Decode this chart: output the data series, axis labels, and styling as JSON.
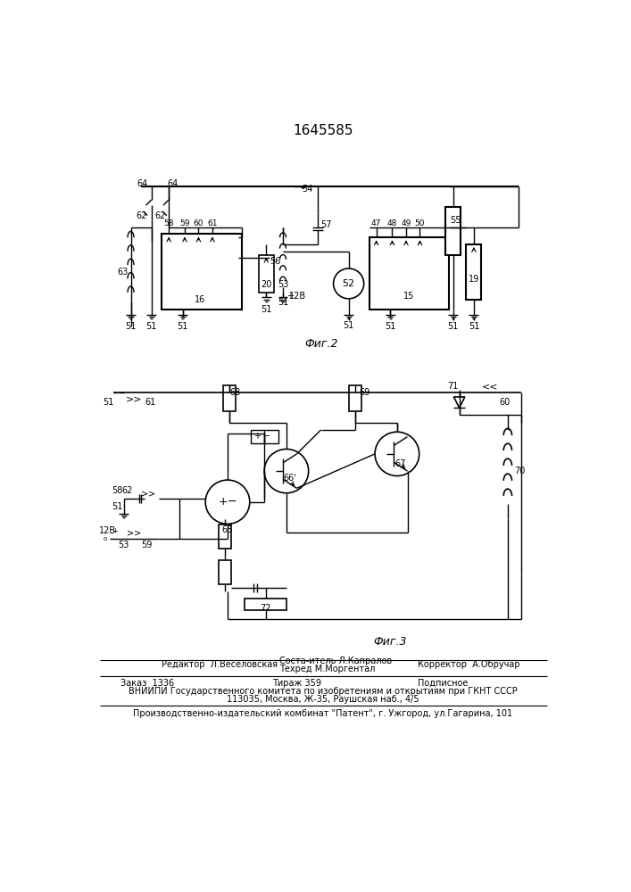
{
  "title": "1645585",
  "fig2_caption": "Фиг.2",
  "fig3_caption": "Фиг.3",
  "editor_line": "Редактор  Л.Веселовская",
  "composer_line1": "Соста-итель Л.Капралов",
  "composer_line2": "Техред М.Моргентал",
  "corrector_line": "Корректор  А.Обручар",
  "order_line": "Заказ  1336                  Тираж 359                   Подписное",
  "vniipи_line": "ВНИИПИ Государственного комитета по изобретениям и открытиям при ГКНТ СССР",
  "address_line": "113035, Москва, Ж-35, Раушская наб., 4/5",
  "publisher_line": "Производственно-издательский комбинат \"Патент\", г. Ужгород, ул.Гагарина, 101",
  "bg_color": "#ffffff",
  "line_color": "#000000"
}
